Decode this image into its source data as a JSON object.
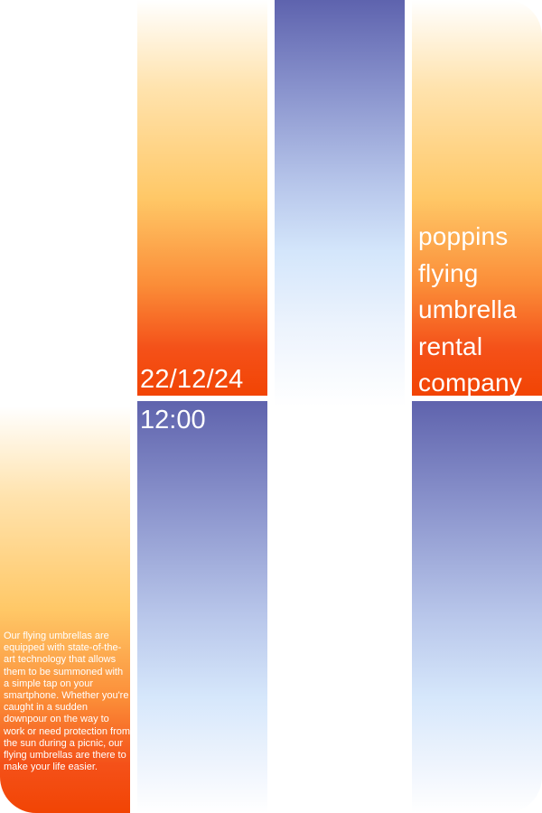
{
  "poster": {
    "date": "22/12/24",
    "time": "12:00",
    "company_lines": [
      "poppins",
      "flying",
      "umbrella",
      "rental",
      "company"
    ],
    "description": "Our flying umbrellas are equipped with state-of-the-art technology that allows them to be summoned with a simple tap on your smartphone. Whether you're caught in a sudden downpour on the way to work or need protection from the sun during a picnic, our flying umbrellas are there to make your life easier."
  },
  "colors": {
    "warm_top": "#ffe3ae",
    "warm_mid": "#ffc867",
    "warm_bottom": "#f24404",
    "cool_top": "#5f63ad",
    "cool_mid": "#b8c6ea",
    "cool_bottom": "#ffffff",
    "text": "#ffffff"
  }
}
